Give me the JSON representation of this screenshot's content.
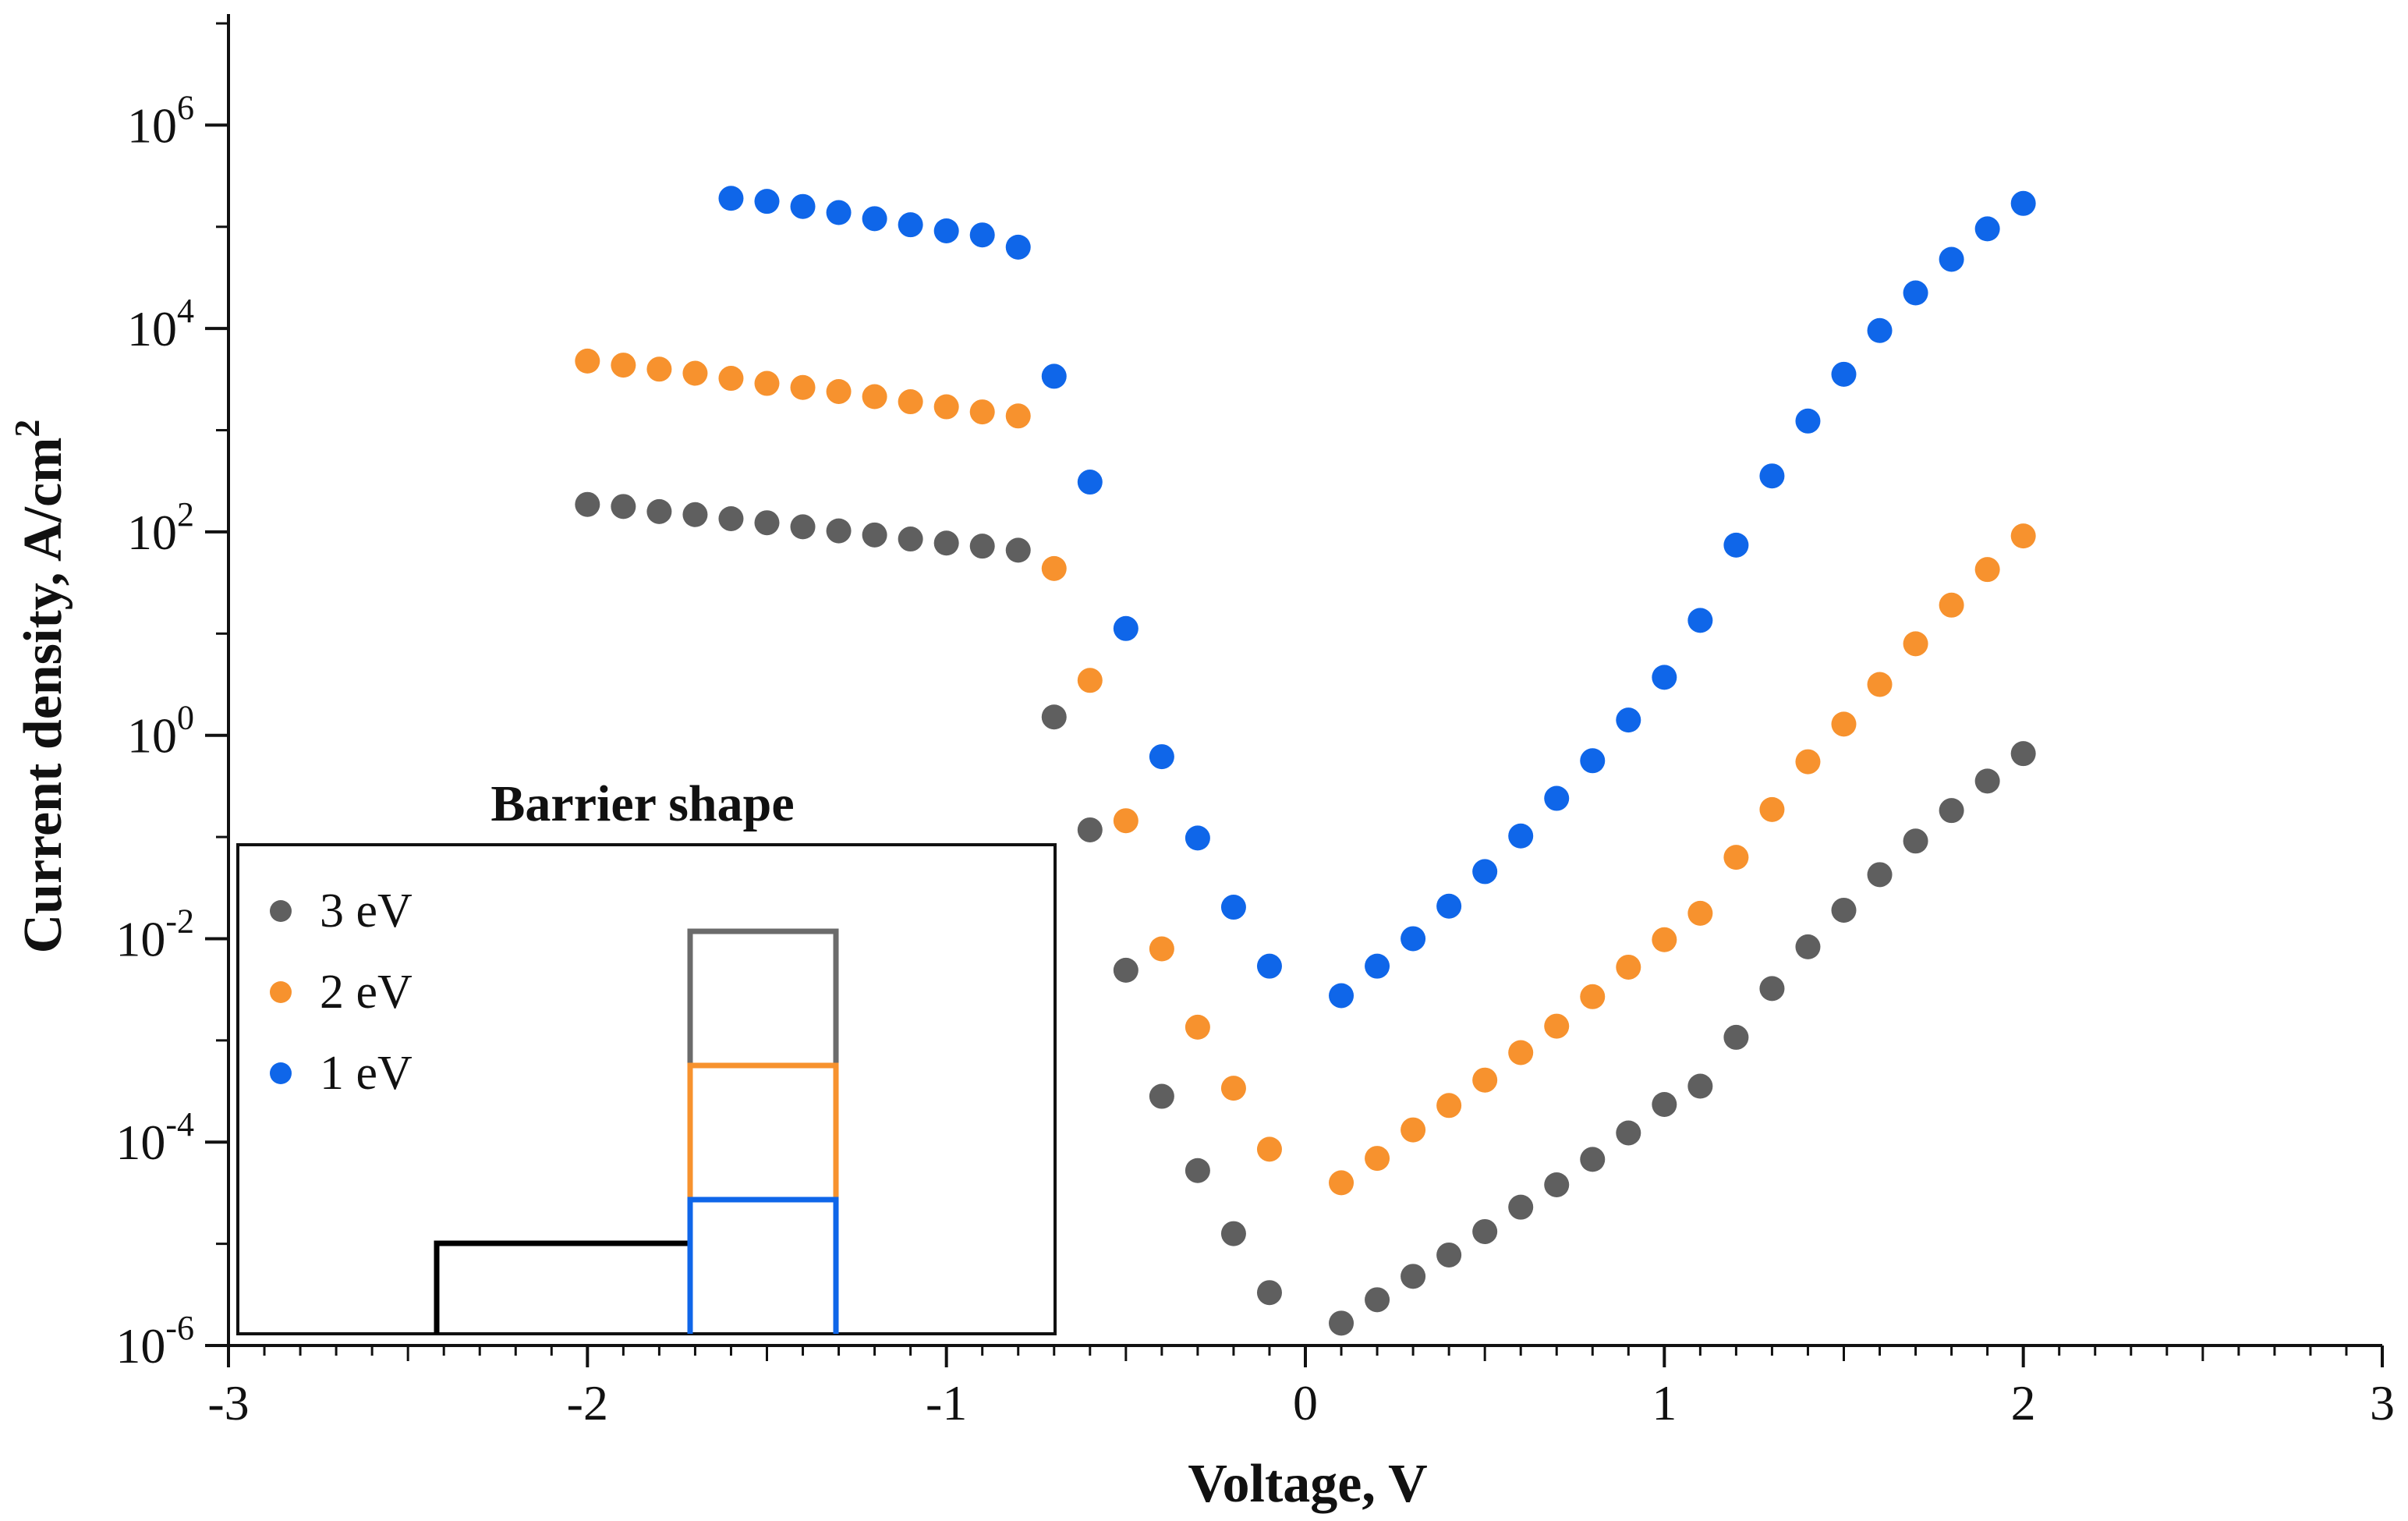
{
  "chart_data": {
    "type": "scatter",
    "title": "",
    "xlabel": "Voltage, V",
    "ylabel": "Current density, A/cm",
    "ylabel_sup": "2",
    "xlim": [
      -3,
      3
    ],
    "ylim_log10": [
      -6,
      7
    ],
    "y_scale": "log",
    "x_ticks": [
      -3,
      -2,
      -1,
      0,
      1,
      2,
      3
    ],
    "x_tick_labels": [
      "-3",
      "-2",
      "-1",
      "0",
      "1",
      "2",
      "3"
    ],
    "y_ticks_log10": [
      -6,
      -4,
      -2,
      0,
      2,
      4,
      6
    ],
    "y_tick_labels": [
      {
        "base": "10",
        "exp": "-6"
      },
      {
        "base": "10",
        "exp": "-4"
      },
      {
        "base": "10",
        "exp": "-2"
      },
      {
        "base": "10",
        "exp": "0"
      },
      {
        "base": "10",
        "exp": "2"
      },
      {
        "base": "10",
        "exp": "4"
      },
      {
        "base": "10",
        "exp": "6"
      }
    ],
    "series": [
      {
        "name": "3 eV",
        "color": "#5f5f5f",
        "x": [
          -2.0,
          -1.9,
          -1.8,
          -1.7,
          -1.6,
          -1.5,
          -1.4,
          -1.3,
          -1.2,
          -1.1,
          -1.0,
          -0.9,
          -0.8,
          -0.7,
          -0.6,
          -0.5,
          -0.4,
          -0.3,
          -0.2,
          -0.1,
          0.1,
          0.2,
          0.3,
          0.4,
          0.5,
          0.6,
          0.7,
          0.8,
          0.9,
          1.0,
          1.1,
          1.2,
          1.3,
          1.4,
          1.5,
          1.6,
          1.7,
          1.8,
          1.9,
          2.0
        ],
        "log10_y": [
          2.27,
          2.25,
          2.2,
          2.17,
          2.13,
          2.09,
          2.05,
          2.01,
          1.97,
          1.93,
          1.89,
          1.86,
          1.82,
          0.18,
          -0.93,
          -2.31,
          -3.55,
          -4.28,
          -4.9,
          -5.48,
          -5.78,
          -5.55,
          -5.32,
          -5.11,
          -4.88,
          -4.64,
          -4.42,
          -4.17,
          -3.91,
          -3.63,
          -3.45,
          -2.97,
          -2.49,
          -2.08,
          -1.72,
          -1.37,
          -1.04,
          -0.74,
          -0.45,
          -0.18
        ]
      },
      {
        "name": "2 eV",
        "color": "#f7922e",
        "x": [
          -2.0,
          -1.9,
          -1.8,
          -1.7,
          -1.6,
          -1.5,
          -1.4,
          -1.3,
          -1.2,
          -1.1,
          -1.0,
          -0.9,
          -0.8,
          -0.7,
          -0.6,
          -0.5,
          -0.4,
          -0.3,
          -0.2,
          -0.1,
          0.1,
          0.2,
          0.3,
          0.4,
          0.5,
          0.6,
          0.7,
          0.8,
          0.9,
          1.0,
          1.1,
          1.2,
          1.3,
          1.4,
          1.5,
          1.6,
          1.7,
          1.8,
          1.9,
          2.0
        ],
        "log10_y": [
          3.68,
          3.64,
          3.6,
          3.56,
          3.51,
          3.46,
          3.42,
          3.38,
          3.33,
          3.28,
          3.23,
          3.18,
          3.14,
          1.64,
          0.54,
          -0.84,
          -2.1,
          -2.87,
          -3.47,
          -4.07,
          -4.4,
          -4.16,
          -3.88,
          -3.64,
          -3.39,
          -3.12,
          -2.86,
          -2.57,
          -2.28,
          -2.01,
          -1.75,
          -1.2,
          -0.73,
          -0.26,
          0.11,
          0.5,
          0.9,
          1.28,
          1.63,
          1.96
        ]
      },
      {
        "name": "1 eV",
        "color": "#0f66e9",
        "x": [
          -1.6,
          -1.5,
          -1.4,
          -1.3,
          -1.2,
          -1.1,
          -1.0,
          -0.9,
          -0.8,
          -0.7,
          -0.6,
          -0.5,
          -0.4,
          -0.3,
          -0.2,
          -0.1,
          0.1,
          0.2,
          0.3,
          0.4,
          0.5,
          0.6,
          0.7,
          0.8,
          0.9,
          1.0,
          1.1,
          1.2,
          1.3,
          1.4,
          1.5,
          1.6,
          1.7,
          1.8,
          1.9,
          2.0
        ],
        "log10_y": [
          5.28,
          5.25,
          5.2,
          5.14,
          5.08,
          5.02,
          4.96,
          4.92,
          4.8,
          3.53,
          2.49,
          1.05,
          -0.21,
          -1.01,
          -1.69,
          -2.27,
          -2.56,
          -2.27,
          -2.0,
          -1.68,
          -1.34,
          -0.99,
          -0.62,
          -0.25,
          0.15,
          0.57,
          1.13,
          1.87,
          2.55,
          3.09,
          3.55,
          3.98,
          4.35,
          4.68,
          4.98,
          5.23
        ]
      }
    ],
    "inset": {
      "title": "Barrier shape",
      "legend": [
        "3 eV",
        "2 eV",
        "1 eV"
      ],
      "barrier_heights": [
        3,
        2,
        1
      ],
      "colors": [
        "#6b6b6b",
        "#f7922e",
        "#0f66e9"
      ],
      "step_color": "#000000"
    }
  }
}
